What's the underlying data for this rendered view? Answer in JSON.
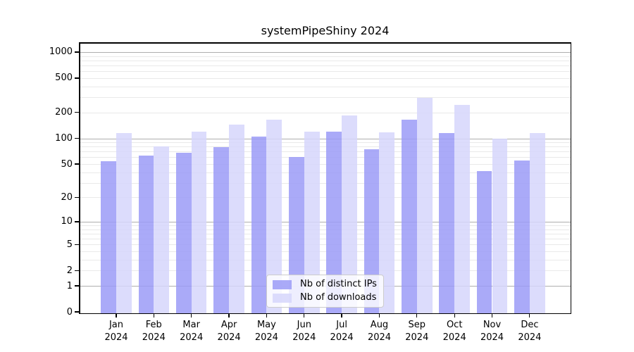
{
  "title": "systemPipeShiny 2024",
  "chart_data": {
    "type": "bar",
    "title": "systemPipeShiny 2024",
    "categories": [
      "Jan",
      "Feb",
      "Mar",
      "Apr",
      "May",
      "Jun",
      "Jul",
      "Aug",
      "Sep",
      "Oct",
      "Nov",
      "Dec"
    ],
    "year_label": "2024",
    "series": [
      {
        "name": "Nb of distinct IPs",
        "color": "rgba(155,155,247,0.85)",
        "values": [
          54,
          63,
          68,
          79,
          104,
          61,
          120,
          75,
          165,
          115,
          41,
          55
        ]
      },
      {
        "name": "Nb of downloads",
        "color": "rgba(214,214,251,0.85)",
        "values": [
          116,
          81,
          120,
          145,
          165,
          119,
          183,
          117,
          298,
          245,
          100,
          115
        ]
      }
    ],
    "xlabel": "",
    "ylabel": "",
    "yscale": "log10(value+1)",
    "ylim": [
      0,
      1300
    ],
    "yticks": [
      1000,
      500,
      200,
      100,
      50,
      20,
      10,
      5,
      2,
      1,
      0
    ],
    "grid": {
      "major_ticks": [
        1,
        10,
        100,
        1000
      ],
      "major_color": "#aeaeae",
      "minor_color": "#e9e9e9"
    },
    "legend_position": "bottom-center"
  }
}
